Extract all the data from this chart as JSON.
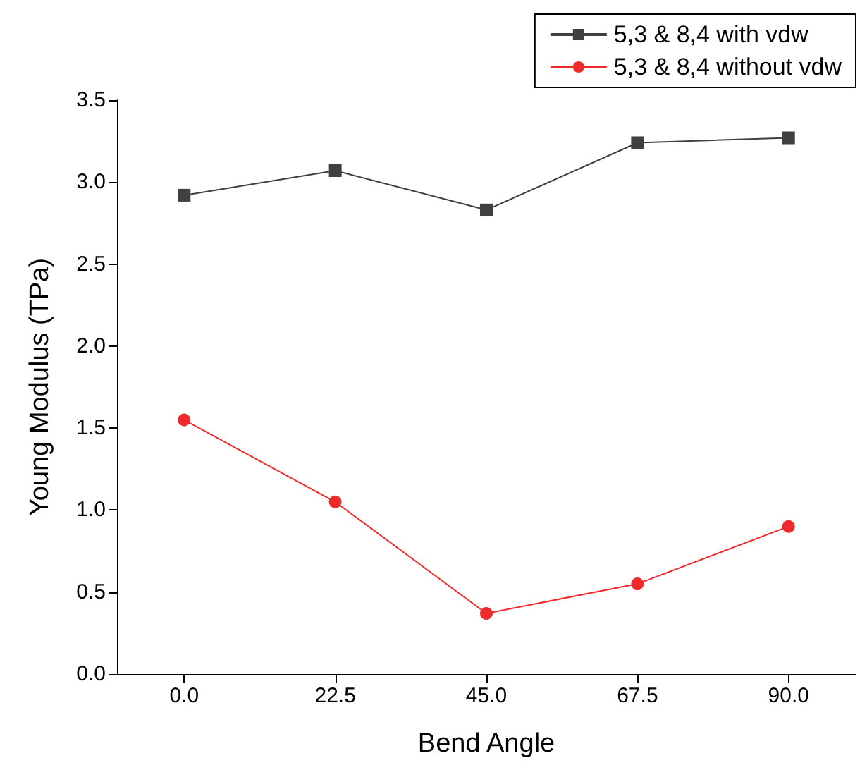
{
  "chart_data": {
    "type": "line",
    "xlabel": "Bend Angle",
    "ylabel": "Young Modulus (TPa)",
    "x": [
      0,
      22.5,
      45,
      67.5,
      90
    ],
    "series": [
      {
        "name": "5,3 & 8,4 with vdw",
        "color": "#404040",
        "marker": "square",
        "values": [
          2.92,
          3.07,
          2.83,
          3.24,
          3.27
        ]
      },
      {
        "name": "5,3 & 8,4 without vdw",
        "color": "#ee2a2a",
        "marker": "circle",
        "values": [
          1.55,
          1.05,
          0.37,
          0.55,
          0.9
        ]
      }
    ],
    "xlim": [
      -10,
      100
    ],
    "xticks": [
      {
        "value": 0,
        "label": "0.0"
      },
      {
        "value": 22.5,
        "label": "22.5"
      },
      {
        "value": 45,
        "label": "45.0"
      },
      {
        "value": 67.5,
        "label": "67.5"
      },
      {
        "value": 90,
        "label": "90.0"
      }
    ],
    "ylim": [
      0,
      3.5
    ],
    "yticks": [
      {
        "value": 0,
        "label": "0.0"
      },
      {
        "value": 0.5,
        "label": "0.5"
      },
      {
        "value": 1,
        "label": "1.0"
      },
      {
        "value": 1.5,
        "label": "1.5"
      },
      {
        "value": 2,
        "label": "2.0"
      },
      {
        "value": 2.5,
        "label": "2.5"
      },
      {
        "value": 3,
        "label": "3.0"
      },
      {
        "value": 3.5,
        "label": "3.5"
      }
    ],
    "grid": false,
    "legend": "top right"
  }
}
